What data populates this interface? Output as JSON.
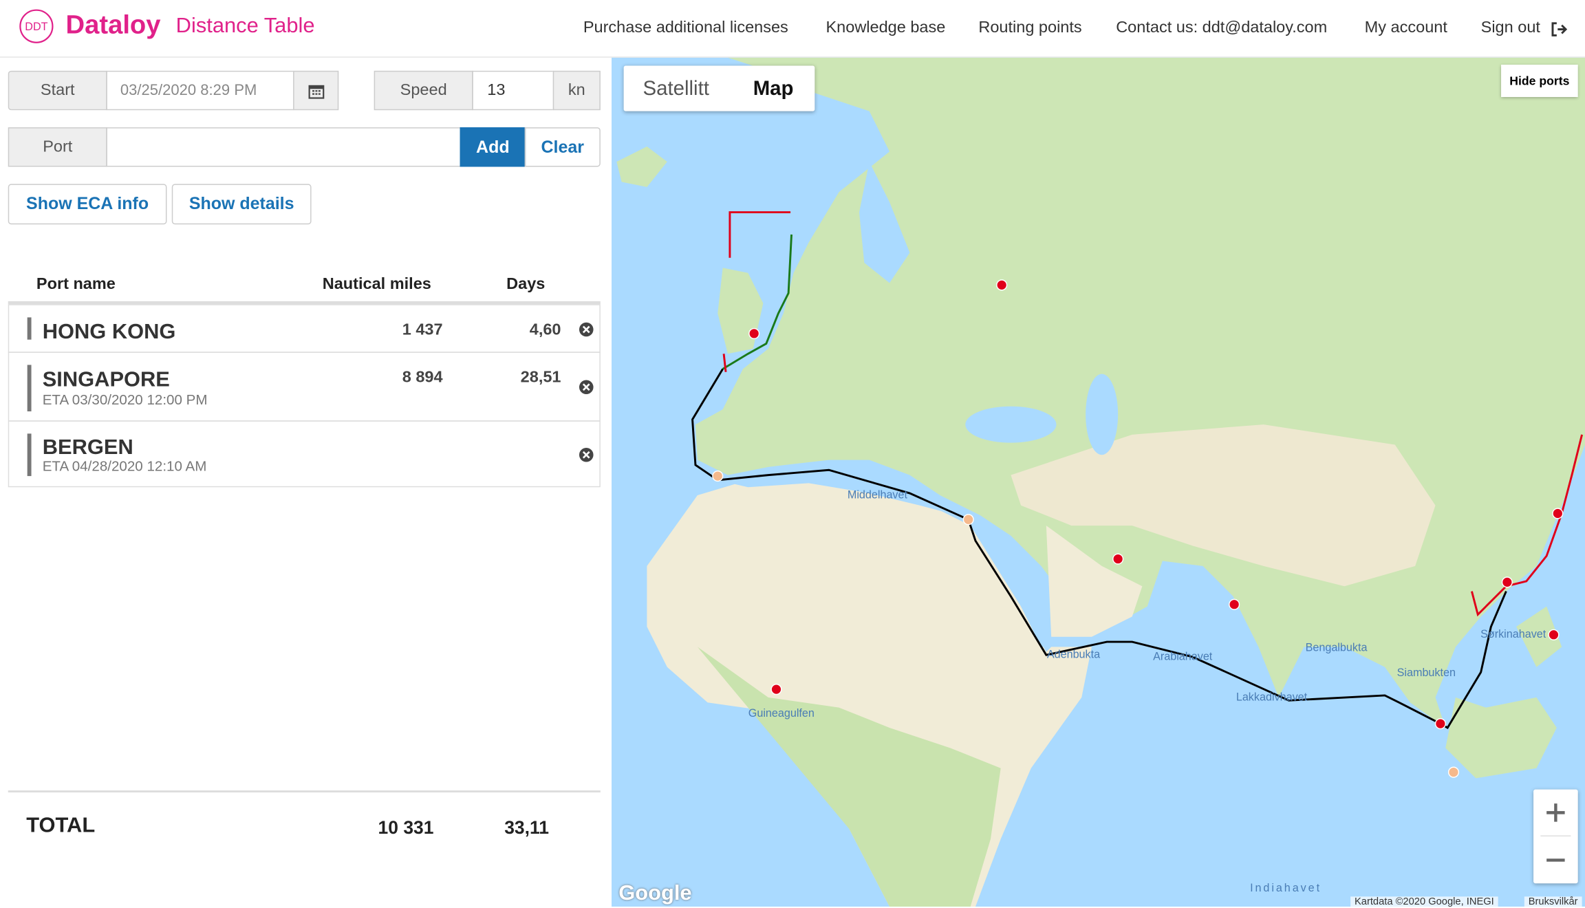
{
  "header": {
    "logo_badge": "DDT",
    "brand": "Dataloy",
    "subtitle": "Distance Table",
    "nav": [
      "Purchase additional licenses",
      "Knowledge base",
      "Routing points",
      "Contact us: ddt@dataloy.com",
      "My account",
      "Sign out"
    ]
  },
  "form": {
    "start_label": "Start",
    "start_value": "03/25/2020 8:29 PM",
    "speed_label": "Speed",
    "speed_value": "13",
    "speed_unit": "kn",
    "port_label": "Port",
    "add_button": "Add",
    "clear_button": "Clear",
    "eca_button": "Show ECA info",
    "details_button": "Show details"
  },
  "table": {
    "headers": [
      "Port name",
      "Nautical miles",
      "Days"
    ],
    "rows": [
      {
        "port": "HONG KONG",
        "miles": "1 437",
        "days": "4,60"
      },
      {
        "port": "SINGAPORE",
        "eta": "ETA 03/30/2020 12:00 PM",
        "miles": "8 894",
        "days": "28,51"
      },
      {
        "port": "BERGEN",
        "eta": "ETA 04/28/2020 12:10 AM"
      }
    ],
    "total": {
      "label": "TOTAL",
      "miles": "10 331",
      "days": "33,11"
    }
  },
  "map": {
    "type_buttons": [
      "Satellitt",
      "Map"
    ],
    "hide_ports": "Hide ports",
    "labels": [
      "Middelhavet",
      "Adenbukta",
      "Arabiahavet",
      "Bengalbukta",
      "Siambukten",
      "Sørkinahavet",
      "Lakkadivhavet",
      "Guineagulfen",
      "Indiahavet"
    ],
    "logo": "Google",
    "attribution": "Kartdata ©2020 Google, INEGI",
    "terms": "Bruksvilkår"
  }
}
